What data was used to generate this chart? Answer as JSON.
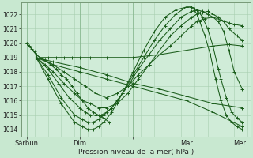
{
  "title": "",
  "xlabel": "Pression niveau de la mer( hPa )",
  "bg_color": "#c8e8d0",
  "plot_bg_color": "#d0ecd8",
  "line_color": "#1a5c1a",
  "ylim": [
    1013.5,
    1022.8
  ],
  "xlim": [
    -0.1,
    4.2
  ],
  "yticks": [
    1014,
    1015,
    1016,
    1017,
    1018,
    1019,
    1020,
    1021,
    1022
  ],
  "xtick_labels": [
    "Sárbun",
    "Dim",
    "",
    "Mar",
    "Mer"
  ],
  "xtick_positions": [
    0,
    1,
    2,
    3,
    4
  ],
  "grid_minor_step": 0.25,
  "lines": [
    {
      "x": [
        0.0,
        0.18,
        0.25,
        0.4,
        0.55,
        0.7,
        0.85,
        1.0,
        1.2,
        1.5,
        2.0,
        2.5,
        3.0,
        3.5,
        3.8,
        4.05
      ],
      "y": [
        1020.0,
        1019.2,
        1019.0,
        1019.0,
        1019.0,
        1019.0,
        1019.0,
        1019.0,
        1019.0,
        1019.0,
        1019.0,
        1019.2,
        1019.5,
        1019.8,
        1019.9,
        1019.8
      ]
    },
    {
      "x": [
        0.18,
        0.35,
        0.5,
        0.7,
        0.9,
        1.1,
        1.3,
        1.5,
        1.7,
        1.9,
        2.1,
        2.3,
        2.5,
        2.7,
        2.9,
        3.1,
        3.2,
        3.35,
        3.5,
        3.65,
        3.8,
        3.9,
        4.05
      ],
      "y": [
        1019.0,
        1018.8,
        1018.5,
        1018.0,
        1017.5,
        1017.0,
        1016.5,
        1016.2,
        1016.5,
        1017.0,
        1017.8,
        1018.5,
        1019.2,
        1019.8,
        1020.5,
        1021.2,
        1021.5,
        1021.7,
        1021.8,
        1021.6,
        1021.4,
        1021.3,
        1021.2
      ]
    },
    {
      "x": [
        0.18,
        0.35,
        0.5,
        0.7,
        0.9,
        1.05,
        1.2,
        1.35,
        1.5,
        1.7,
        1.9,
        2.1,
        2.3,
        2.5,
        2.7,
        2.9,
        3.1,
        3.2,
        3.3,
        3.4,
        3.5,
        3.6,
        3.7,
        3.8,
        3.95,
        4.05
      ],
      "y": [
        1019.0,
        1018.5,
        1018.0,
        1017.2,
        1016.5,
        1016.0,
        1015.8,
        1015.5,
        1015.5,
        1015.8,
        1016.5,
        1017.5,
        1018.5,
        1019.5,
        1020.5,
        1021.2,
        1021.8,
        1022.0,
        1022.1,
        1022.2,
        1022.0,
        1021.8,
        1021.5,
        1021.0,
        1020.5,
        1020.2
      ]
    },
    {
      "x": [
        0.18,
        0.4,
        0.6,
        0.8,
        1.0,
        1.1,
        1.2,
        1.3,
        1.4,
        1.5,
        1.6,
        1.7,
        1.9,
        2.1,
        2.3,
        2.5,
        2.7,
        2.9,
        3.1,
        3.2,
        3.3,
        3.4,
        3.5,
        3.6,
        3.7,
        3.8,
        3.9,
        4.05
      ],
      "y": [
        1019.0,
        1018.2,
        1017.2,
        1016.2,
        1015.5,
        1015.2,
        1015.0,
        1015.0,
        1015.0,
        1015.2,
        1015.5,
        1016.0,
        1017.0,
        1018.2,
        1019.2,
        1020.2,
        1021.0,
        1021.8,
        1022.2,
        1022.3,
        1022.2,
        1022.0,
        1021.8,
        1021.5,
        1020.8,
        1019.5,
        1018.0,
        1016.8
      ]
    },
    {
      "x": [
        0.18,
        0.4,
        0.65,
        0.9,
        1.05,
        1.15,
        1.25,
        1.35,
        1.45,
        1.6,
        1.8,
        2.0,
        2.2,
        2.4,
        2.6,
        2.8,
        3.0,
        3.1,
        3.15,
        3.2,
        3.25,
        3.3,
        3.4,
        3.5,
        3.6,
        3.65,
        3.75,
        3.85,
        3.95,
        4.05
      ],
      "y": [
        1019.0,
        1017.8,
        1016.2,
        1015.0,
        1014.7,
        1014.5,
        1014.5,
        1014.7,
        1015.0,
        1015.5,
        1016.5,
        1017.8,
        1019.0,
        1020.2,
        1021.2,
        1022.0,
        1022.5,
        1022.5,
        1022.4,
        1022.3,
        1022.1,
        1021.8,
        1021.0,
        1019.8,
        1018.2,
        1017.5,
        1016.2,
        1015.2,
        1014.8,
        1014.5
      ]
    },
    {
      "x": [
        0.18,
        0.4,
        0.65,
        0.9,
        1.05,
        1.15,
        1.25,
        1.35,
        1.45,
        1.6,
        1.8,
        2.0,
        2.2,
        2.4,
        2.6,
        2.8,
        3.0,
        3.1,
        3.15,
        3.2,
        3.25,
        3.35,
        3.45,
        3.55,
        3.65,
        3.75,
        3.85,
        3.95,
        4.05
      ],
      "y": [
        1019.0,
        1017.5,
        1015.8,
        1014.5,
        1014.2,
        1014.0,
        1014.0,
        1014.2,
        1014.5,
        1015.2,
        1016.5,
        1018.0,
        1019.5,
        1020.8,
        1021.8,
        1022.3,
        1022.5,
        1022.5,
        1022.3,
        1022.0,
        1021.5,
        1020.5,
        1019.2,
        1017.5,
        1016.0,
        1015.0,
        1014.5,
        1014.2,
        1014.0
      ]
    },
    {
      "x": [
        0.18,
        0.5,
        1.0,
        1.5,
        2.0,
        2.5,
        3.0,
        3.5,
        4.05
      ],
      "y": [
        1019.0,
        1018.5,
        1018.0,
        1017.5,
        1017.0,
        1016.5,
        1016.0,
        1015.2,
        1014.2
      ]
    },
    {
      "x": [
        0.18,
        0.5,
        1.0,
        1.5,
        2.0,
        2.5,
        3.0,
        3.5,
        4.05
      ],
      "y": [
        1019.0,
        1018.7,
        1018.3,
        1017.8,
        1017.2,
        1016.8,
        1016.3,
        1015.8,
        1015.5
      ]
    },
    {
      "x": [
        0.0,
        0.05,
        0.1,
        0.15,
        0.18,
        0.25,
        0.35,
        0.45,
        0.55,
        0.65,
        0.75,
        0.85,
        0.95,
        1.05,
        1.15,
        1.25,
        1.35,
        1.45,
        1.55
      ],
      "y": [
        1020.0,
        1019.8,
        1019.6,
        1019.4,
        1019.2,
        1019.0,
        1018.8,
        1018.5,
        1018.2,
        1017.8,
        1017.5,
        1017.0,
        1016.5,
        1016.0,
        1015.5,
        1015.2,
        1015.0,
        1014.8,
        1014.5
      ]
    }
  ]
}
